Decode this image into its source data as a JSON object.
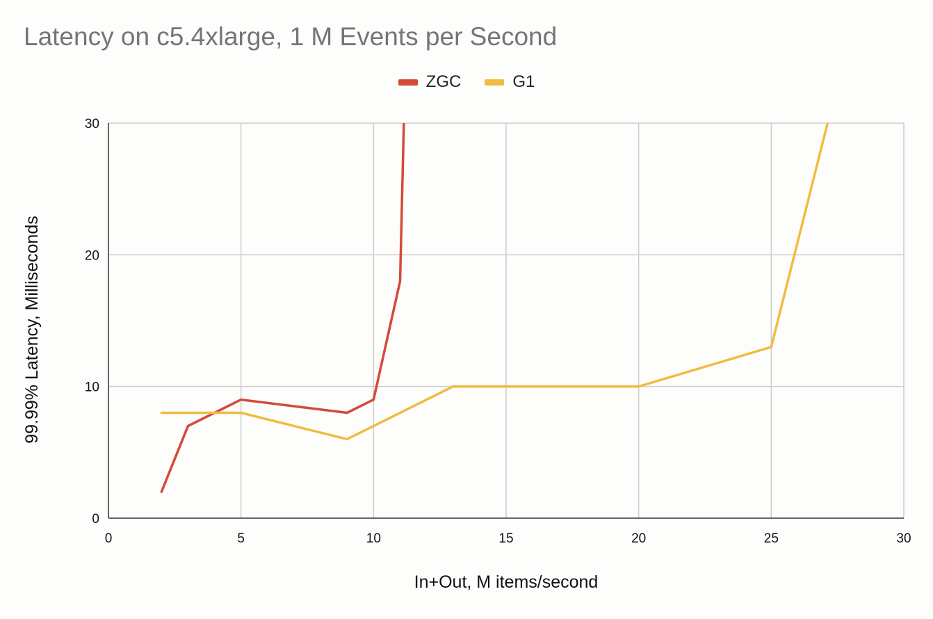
{
  "chart_data": {
    "type": "line",
    "title": "Latency on c5.4xlarge, 1 M Events per Second",
    "xlabel": "In+Out, M items/second",
    "ylabel": "99.99% Latency, Milliseconds",
    "xlim": [
      0,
      30
    ],
    "ylim": [
      0,
      30
    ],
    "xticks": [
      0,
      5,
      10,
      15,
      20,
      25,
      30
    ],
    "yticks": [
      0,
      10,
      20,
      30
    ],
    "grid": true,
    "legend_position": "top-center",
    "series": [
      {
        "name": "ZGC",
        "color": "#d44a3a",
        "x": [
          2,
          3,
          5,
          9,
          10,
          11,
          11.2
        ],
        "y": [
          2,
          7,
          9,
          8,
          9,
          18,
          35
        ]
      },
      {
        "name": "G1",
        "color": "#f0bc42",
        "x": [
          2,
          5,
          9,
          13,
          20,
          25,
          27.5
        ],
        "y": [
          8,
          8,
          6,
          10,
          10,
          13,
          33
        ]
      }
    ]
  }
}
